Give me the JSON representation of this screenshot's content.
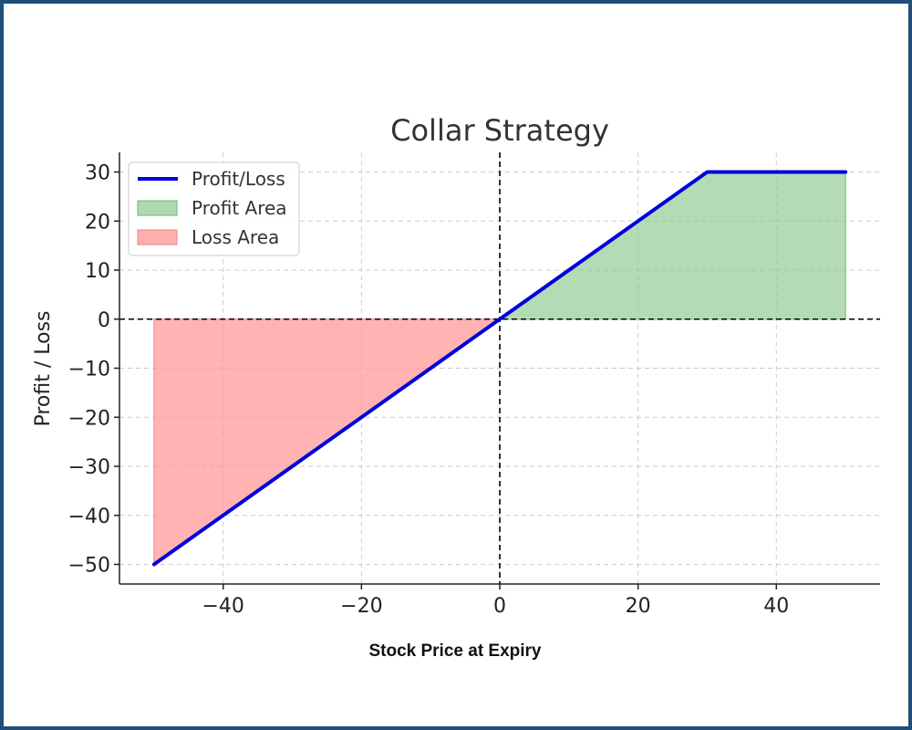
{
  "chart_data": {
    "type": "line",
    "title": "Collar Strategy",
    "xlabel": "Stock Price at Expiry",
    "ylabel": "Profit / Loss",
    "xlim": [
      -55,
      55
    ],
    "ylim": [
      -54,
      34
    ],
    "xticks": [
      -40,
      -20,
      0,
      20,
      40
    ],
    "yticks": [
      30,
      20,
      10,
      0,
      -10,
      -20,
      -30,
      -40,
      -50
    ],
    "grid": true,
    "legend_position": "top-left",
    "series": [
      {
        "name": "Profit/Loss",
        "color": "#0000dd",
        "x": [
          -50,
          0,
          30,
          50
        ],
        "y": [
          -50,
          0,
          30,
          30
        ]
      }
    ],
    "areas": [
      {
        "name": "Profit Area",
        "color": "#8cc98c",
        "x": [
          0,
          30,
          50
        ],
        "y": [
          0,
          30,
          30
        ]
      },
      {
        "name": "Loss Area",
        "color": "#ff9a9a",
        "x": [
          -50,
          0
        ],
        "y": [
          -50,
          0
        ]
      }
    ],
    "reference_lines": {
      "x0": true,
      "y0": true
    }
  }
}
